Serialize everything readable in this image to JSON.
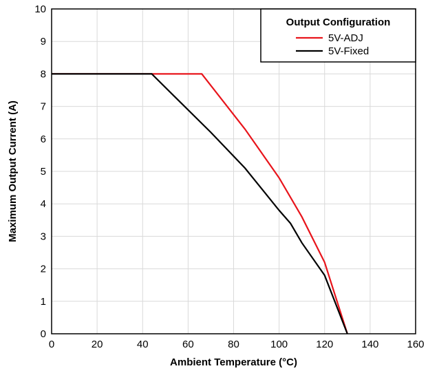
{
  "chart_data": {
    "type": "line",
    "title": "",
    "xlabel": "Ambient Temperature (°C)",
    "ylabel": "Maximum Output Current (A)",
    "xlim": [
      0,
      160
    ],
    "ylim": [
      0,
      10
    ],
    "xticks": [
      0,
      20,
      40,
      60,
      80,
      100,
      120,
      140,
      160
    ],
    "yticks": [
      0,
      1,
      2,
      3,
      4,
      5,
      6,
      7,
      8,
      9,
      10
    ],
    "grid": true,
    "legend": {
      "title": "Output Configuration",
      "position": "top-right"
    },
    "series": [
      {
        "name": "5V-ADJ",
        "color": "#e8141b",
        "x": [
          0,
          66,
          85,
          100,
          110,
          120,
          130
        ],
        "y": [
          8,
          8,
          6.3,
          4.8,
          3.6,
          2.2,
          0
        ]
      },
      {
        "name": "5V-Fixed",
        "color": "#000000",
        "x": [
          0,
          44,
          70,
          85,
          100,
          105,
          110,
          120,
          130
        ],
        "y": [
          8,
          8,
          6.2,
          5.1,
          3.8,
          3.4,
          2.8,
          1.8,
          0
        ]
      }
    ]
  }
}
